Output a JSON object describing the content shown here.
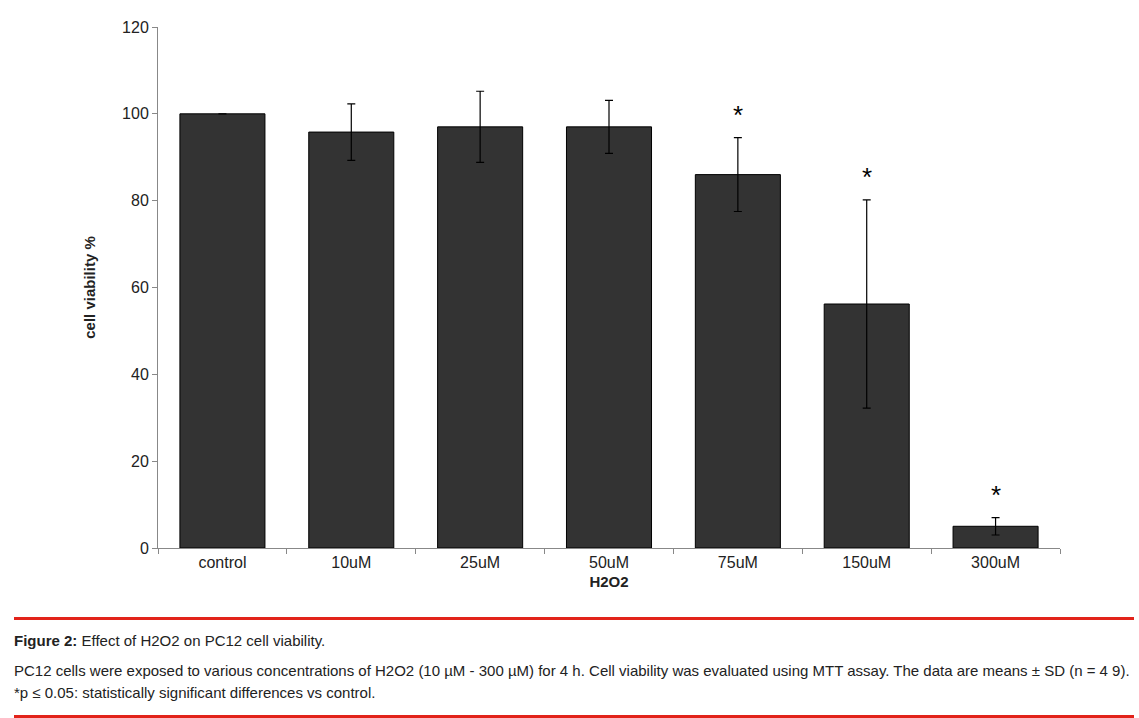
{
  "chart_data": {
    "type": "bar",
    "categories": [
      "control",
      "10uM",
      "25uM",
      "50uM",
      "75uM",
      "150uM",
      "300uM"
    ],
    "values": [
      100,
      95.8,
      97,
      97,
      86,
      56.2,
      5
    ],
    "error": [
      null,
      6.5,
      8.2,
      6.1,
      8.5,
      24,
      2
    ],
    "color": "#333333",
    "xlabel": "H2O2",
    "ylabel": "cell viability %",
    "ylim": [
      0,
      120
    ],
    "yticks": [
      0,
      20,
      40,
      60,
      80,
      100,
      120
    ],
    "grid": false,
    "annotations": [
      {
        "category": "75uM",
        "text": "*"
      },
      {
        "category": "150uM",
        "text": "*"
      },
      {
        "category": "300uM",
        "text": "*"
      }
    ]
  },
  "caption": {
    "label": "Figure 2:",
    "title": "Effect of H2O2 on PC12 cell viability.",
    "text": "PC12 cells were exposed to various concentrations of H2O2 (10 µM - 300 µM) for 4 h. Cell viability was evaluated using MTT assay. The data are means ± SD (n = 4 9). *p ≤ 0.05: statistically significant differences vs control."
  }
}
